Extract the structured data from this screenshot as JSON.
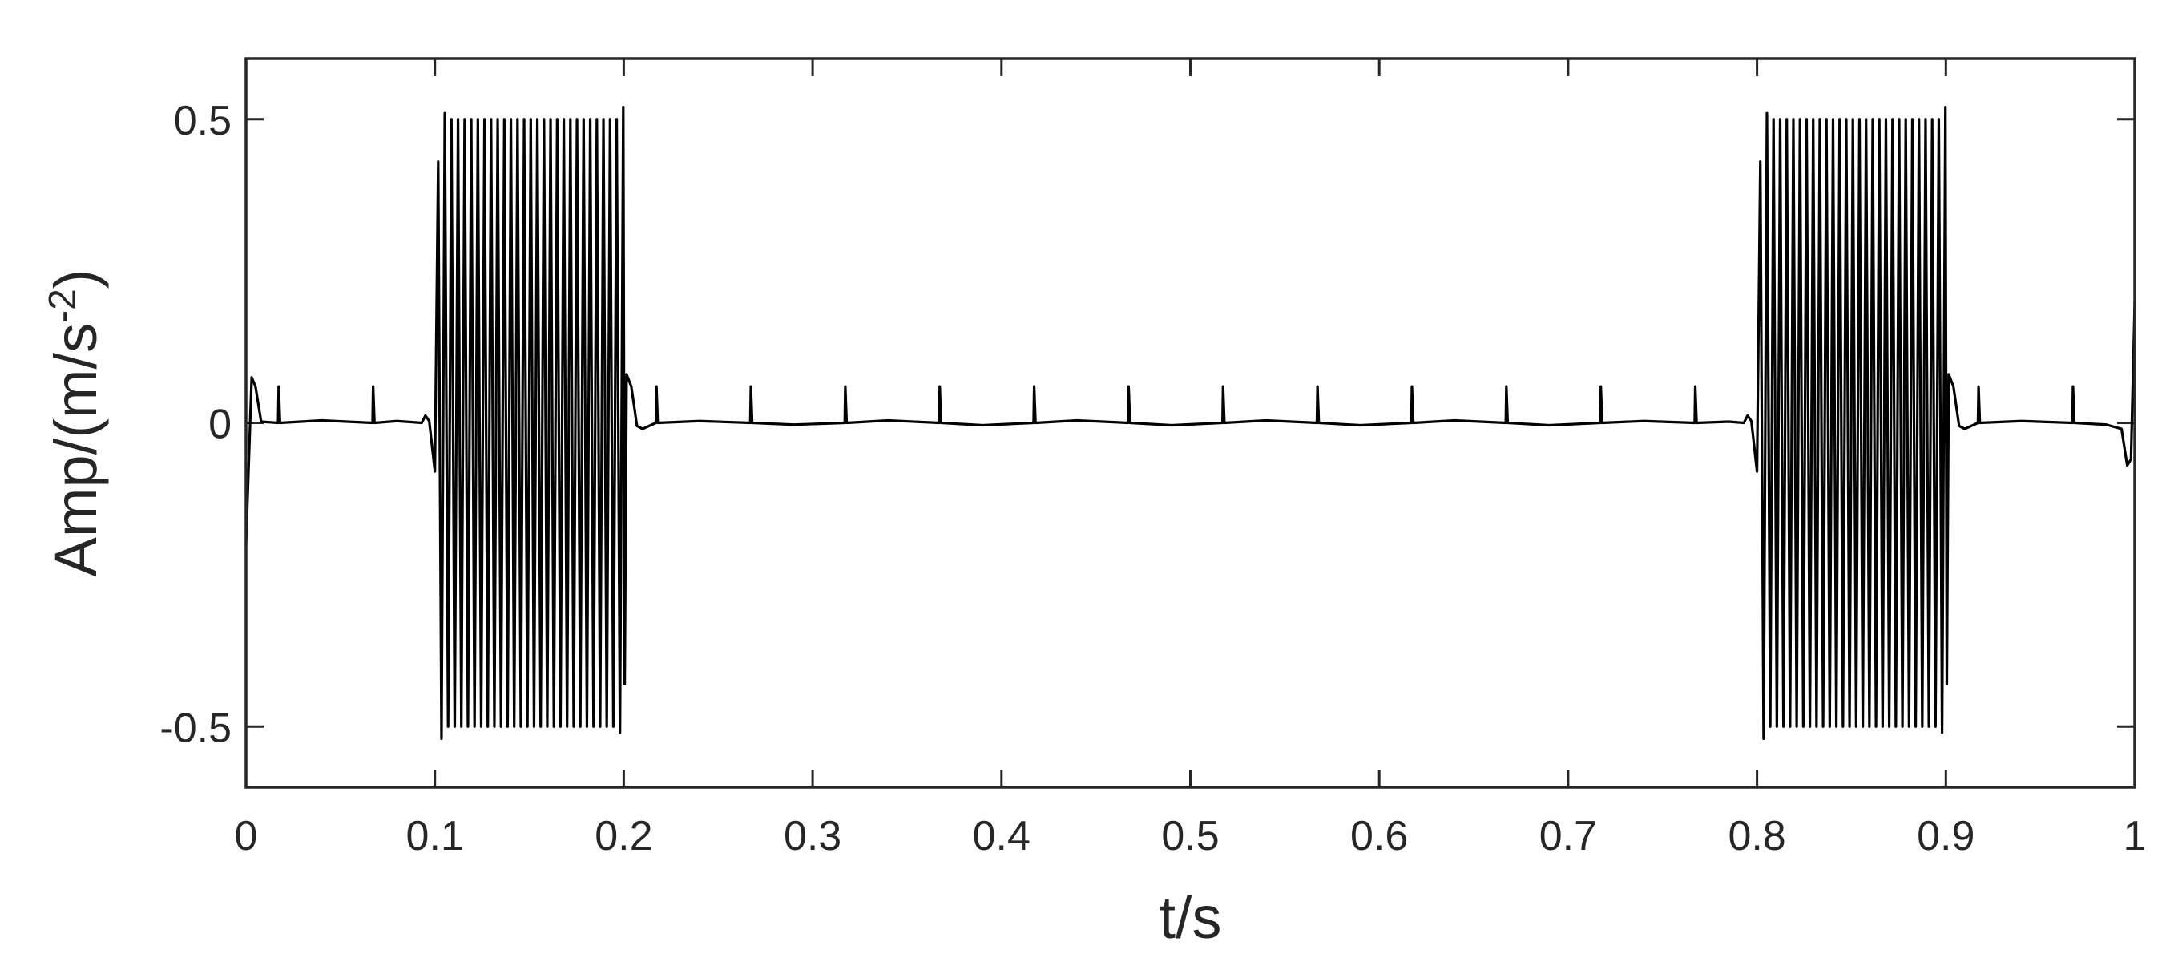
{
  "chart_data": {
    "type": "line",
    "x_label": "t/s",
    "y_label": {
      "base": "Amp/(m/s",
      "sup": "-2",
      "close": ")"
    },
    "color": "#000000",
    "xlim": [
      0,
      1
    ],
    "ylim": [
      -0.6,
      0.6
    ],
    "xticks": [
      0,
      0.1,
      0.2,
      0.3,
      0.4,
      0.5,
      0.6,
      0.7,
      0.8,
      0.9,
      1
    ],
    "yticks": [
      -0.5,
      0,
      0.5
    ],
    "x": [
      0,
      0.003,
      0.005,
      0.008,
      0.017,
      0.0173,
      0.018,
      0.04,
      0.067,
      0.0673,
      0.068,
      0.08,
      0.093,
      0.095,
      0.097,
      0.1,
      0.10175,
      0.1035,
      0.10525,
      0.107,
      0.10875,
      0.1105,
      0.11225,
      0.114,
      0.11575,
      0.1175,
      0.11925,
      0.121,
      0.12275,
      0.1245,
      0.12625,
      0.128,
      0.12975,
      0.1315,
      0.13325,
      0.135,
      0.13675,
      0.1385,
      0.14025,
      0.142,
      0.14375,
      0.1455,
      0.14725,
      0.149,
      0.15075,
      0.1525,
      0.15425,
      0.156,
      0.15775,
      0.1595,
      0.16125,
      0.163,
      0.16475,
      0.1665,
      0.16825,
      0.17,
      0.17175,
      0.1735,
      0.17525,
      0.177,
      0.17875,
      0.1805,
      0.18225,
      0.184,
      0.18575,
      0.1875,
      0.18925,
      0.191,
      0.19275,
      0.1945,
      0.19625,
      0.198,
      0.19975,
      0.2005,
      0.2015,
      0.204,
      0.207,
      0.21,
      0.217,
      0.2173,
      0.218,
      0.24,
      0.267,
      0.2673,
      0.268,
      0.29,
      0.317,
      0.3173,
      0.318,
      0.34,
      0.367,
      0.3673,
      0.368,
      0.39,
      0.417,
      0.4173,
      0.418,
      0.44,
      0.467,
      0.4673,
      0.468,
      0.49,
      0.517,
      0.5173,
      0.518,
      0.54,
      0.567,
      0.5673,
      0.568,
      0.59,
      0.617,
      0.6173,
      0.618,
      0.64,
      0.667,
      0.6673,
      0.668,
      0.69,
      0.717,
      0.7173,
      0.718,
      0.74,
      0.767,
      0.7673,
      0.768,
      0.785,
      0.793,
      0.795,
      0.797,
      0.8,
      0.80175,
      0.8035,
      0.80525,
      0.807,
      0.80875,
      0.8105,
      0.81225,
      0.814,
      0.81575,
      0.8175,
      0.81925,
      0.821,
      0.82275,
      0.8245,
      0.82625,
      0.828,
      0.82975,
      0.8315,
      0.83325,
      0.835,
      0.83675,
      0.8385,
      0.84025,
      0.842,
      0.84375,
      0.8455,
      0.84725,
      0.849,
      0.85075,
      0.8525,
      0.85425,
      0.856,
      0.85775,
      0.8595,
      0.86125,
      0.863,
      0.86475,
      0.8665,
      0.86825,
      0.87,
      0.87175,
      0.8735,
      0.87525,
      0.877,
      0.87875,
      0.8805,
      0.88225,
      0.884,
      0.88575,
      0.8875,
      0.88925,
      0.891,
      0.89275,
      0.8945,
      0.89625,
      0.898,
      0.89975,
      0.9005,
      0.9015,
      0.904,
      0.907,
      0.91,
      0.917,
      0.9173,
      0.918,
      0.94,
      0.967,
      0.9673,
      0.968,
      0.985,
      0.993,
      0.996,
      0.998,
      1
    ],
    "values": [
      -0.2,
      0.075,
      0.06,
      0.002,
      0,
      0.06,
      0,
      0.004,
      0,
      0.06,
      0,
      0.003,
      0,
      0.012,
      0.003,
      -0.08,
      0.43,
      -0.52,
      0.51,
      -0.5,
      0.5,
      -0.5,
      0.5,
      -0.5,
      0.5,
      -0.5,
      0.5,
      -0.5,
      0.5,
      -0.5,
      0.5,
      -0.5,
      0.5,
      -0.5,
      0.5,
      -0.5,
      0.5,
      -0.5,
      0.5,
      -0.5,
      0.5,
      -0.5,
      0.5,
      -0.5,
      0.5,
      -0.5,
      0.5,
      -0.5,
      0.5,
      -0.5,
      0.5,
      -0.5,
      0.5,
      -0.5,
      0.5,
      -0.5,
      0.5,
      -0.5,
      0.5,
      -0.5,
      0.5,
      -0.5,
      0.5,
      -0.5,
      0.5,
      -0.5,
      0.5,
      -0.5,
      0.5,
      -0.5,
      0.5,
      -0.51,
      0.52,
      -0.43,
      0.08,
      0.06,
      -0.005,
      -0.01,
      0,
      0.06,
      0,
      0.003,
      0,
      0.06,
      0,
      -0.003,
      0,
      0.06,
      0,
      0.004,
      0,
      0.06,
      0,
      -0.004,
      0,
      0.06,
      0,
      0.004,
      0,
      0.06,
      0,
      -0.004,
      0,
      0.06,
      0,
      0.004,
      0,
      0.06,
      0,
      -0.004,
      0,
      0.06,
      0,
      0.004,
      0,
      0.06,
      0,
      -0.004,
      0,
      0.06,
      0,
      0.003,
      0,
      0.06,
      0,
      0.002,
      0,
      0.012,
      0.003,
      -0.08,
      0.43,
      -0.52,
      0.51,
      -0.5,
      0.5,
      -0.5,
      0.5,
      -0.5,
      0.5,
      -0.5,
      0.5,
      -0.5,
      0.5,
      -0.5,
      0.5,
      -0.5,
      0.5,
      -0.5,
      0.5,
      -0.5,
      0.5,
      -0.5,
      0.5,
      -0.5,
      0.5,
      -0.5,
      0.5,
      -0.5,
      0.5,
      -0.5,
      0.5,
      -0.5,
      0.5,
      -0.5,
      0.5,
      -0.5,
      0.5,
      -0.5,
      0.5,
      -0.5,
      0.5,
      -0.5,
      0.5,
      -0.5,
      0.5,
      -0.5,
      0.5,
      -0.5,
      0.5,
      -0.5,
      0.5,
      -0.5,
      0.5,
      -0.5,
      0.5,
      -0.51,
      0.52,
      -0.43,
      0.08,
      0.06,
      -0.005,
      -0.01,
      0,
      0.06,
      0,
      0.003,
      0,
      0.06,
      0,
      -0.003,
      -0.01,
      -0.07,
      -0.06,
      0.2
    ]
  }
}
